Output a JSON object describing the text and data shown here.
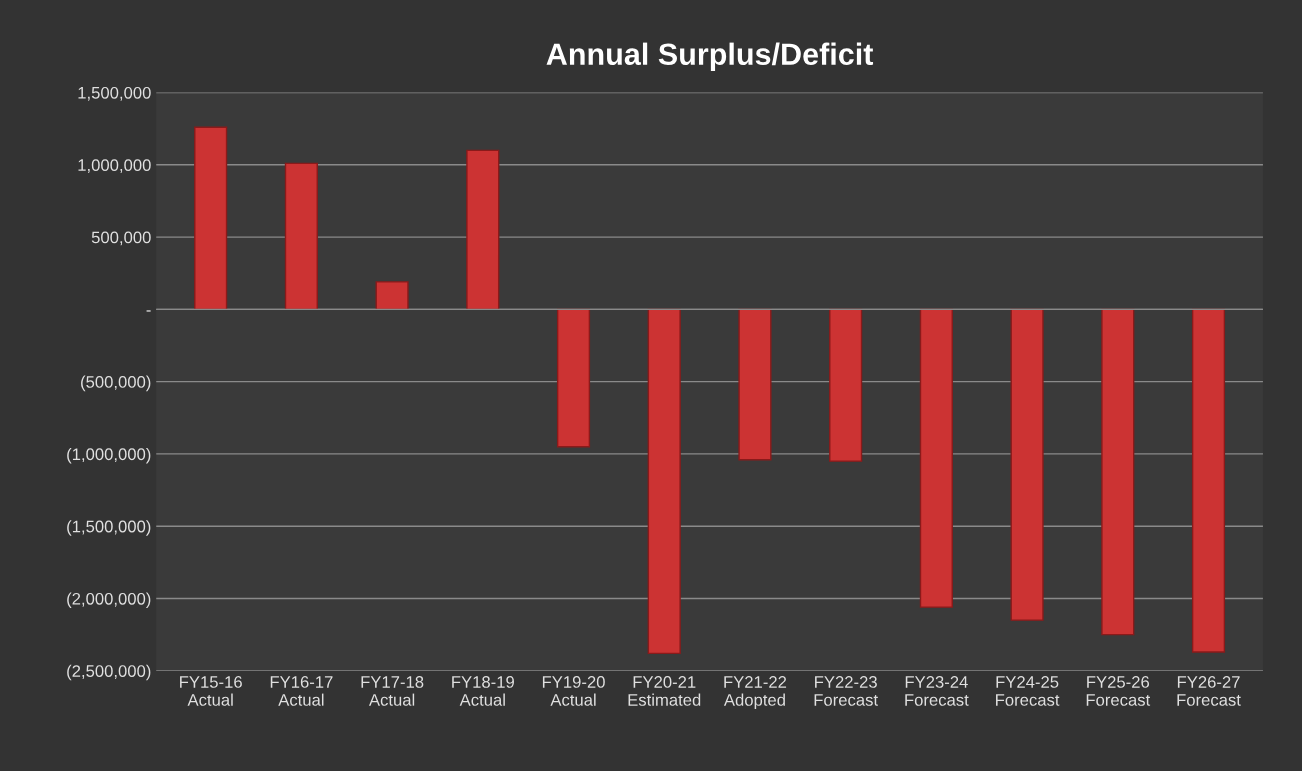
{
  "chart_data": {
    "type": "bar",
    "title": "Annual Surplus/Deficit",
    "categories": [
      "FY15-16\nActual",
      "FY16-17\nActual",
      "FY17-18\nActual",
      "FY18-19\nActual",
      "FY19-20\nActual",
      "FY20-21\nEstimated",
      "FY21-22\nAdopted",
      "FY22-23\nForecast",
      "FY23-24\nForecast",
      "FY24-25\nForecast",
      "FY25-26\nForecast",
      "FY26-27\nForecast"
    ],
    "values": [
      1260000,
      1010000,
      190000,
      1100000,
      -950000,
      -2380000,
      -1040000,
      -1050000,
      -2060000,
      -2150000,
      -2250000,
      -2370000
    ],
    "color": "#cc3333",
    "ylim": [
      -2500000,
      1500000
    ],
    "yticks": [
      {
        "value": -2500000,
        "label": "(2,500,000)"
      },
      {
        "value": -2000000,
        "label": "(2,000,000)"
      },
      {
        "value": -1500000,
        "label": "(1,500,000)"
      },
      {
        "value": -1000000,
        "label": "(1,000,000)"
      },
      {
        "value": -500000,
        "label": "(500,000)"
      },
      {
        "value": 0,
        "label": "-"
      },
      {
        "value": 500000,
        "label": "500,000"
      },
      {
        "value": 1000000,
        "label": "1,000,000"
      },
      {
        "value": 1500000,
        "label": "1,500,000"
      }
    ],
    "grid": "y"
  }
}
